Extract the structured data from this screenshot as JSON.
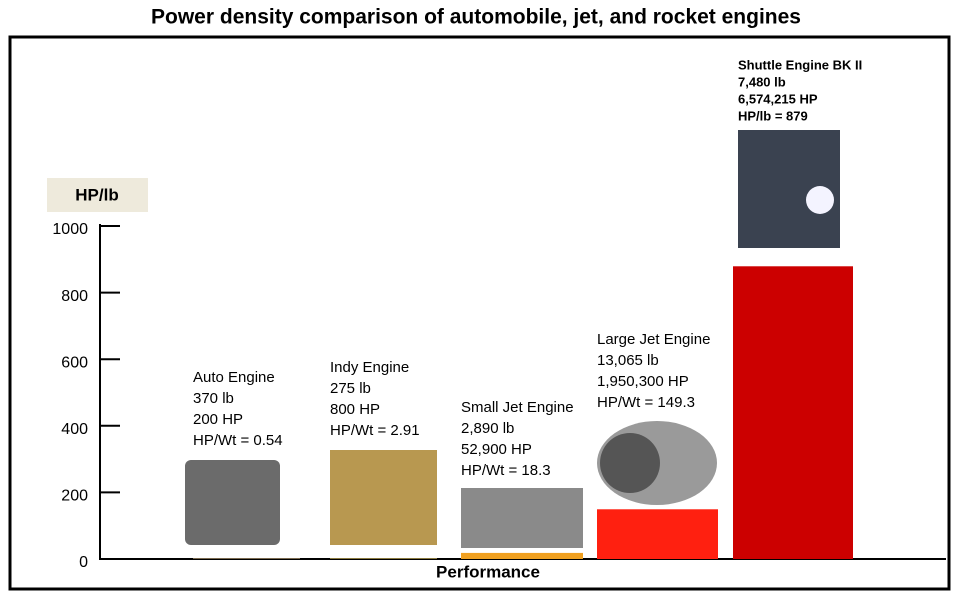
{
  "chart_data": {
    "type": "bar",
    "title": "Power density comparison of automobile, jet, and rocket engines",
    "y_label": "HP/lb",
    "x_label": "Performance",
    "categories": [
      "Auto Engine",
      "Indy Engine",
      "Small Jet Engine",
      "Large Jet Engine",
      "Shuttle Engine BK II"
    ],
    "values": [
      0.54,
      2.91,
      18.3,
      149.3,
      879
    ],
    "colors": [
      "#7a6a50",
      "#8a7a40",
      "#f0a020",
      "#ff2010",
      "#cc0000"
    ],
    "annotations": [
      [
        "370 lb",
        "200 HP",
        "HP/Wt = 0.54"
      ],
      [
        "275 lb",
        "800 HP",
        "HP/Wt = 2.91"
      ],
      [
        "2,890 lb",
        "52,900 HP",
        "HP/Wt = 18.3"
      ],
      [
        "13,065 lb",
        "1,950,300 HP",
        "HP/Wt = 149.3"
      ],
      [
        "7,480 lb",
        "6,574,215 HP",
        "HP/lb = 879"
      ]
    ],
    "ylim": [
      0,
      1000
    ],
    "yticks": [
      0,
      200,
      400,
      600,
      800,
      1000
    ]
  }
}
